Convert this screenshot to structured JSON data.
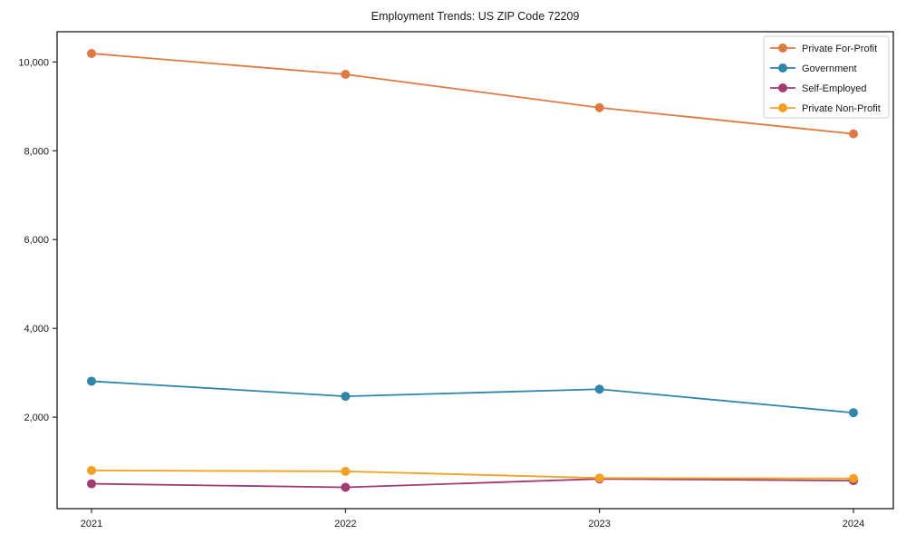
{
  "chart_data": {
    "type": "line",
    "title": "Employment Trends: US ZIP Code 72209",
    "xlabel": "",
    "ylabel": "",
    "grid": false,
    "legend_position": "upper right",
    "marker": "circle",
    "categories": [
      "2021",
      "2022",
      "2023",
      "2024"
    ],
    "ylim": [
      -60,
      10680
    ],
    "yticks": [
      {
        "value": 2000,
        "label": "2,000"
      },
      {
        "value": 4000,
        "label": "4,000"
      },
      {
        "value": 6000,
        "label": "6,000"
      },
      {
        "value": 8000,
        "label": "8,000"
      },
      {
        "value": 10000,
        "label": "10,000"
      }
    ],
    "series": [
      {
        "name": "Private For-Profit",
        "color": "#E1793E",
        "values": [
          10190,
          9720,
          8970,
          8380
        ]
      },
      {
        "name": "Government",
        "color": "#2E86AB",
        "values": [
          2810,
          2470,
          2630,
          2100
        ]
      },
      {
        "name": "Self-Employed",
        "color": "#A23B72",
        "values": [
          500,
          420,
          610,
          570
        ]
      },
      {
        "name": "Private Non-Profit",
        "color": "#F5A01E",
        "values": [
          800,
          780,
          630,
          620
        ]
      }
    ],
    "colors": {
      "axis": "#1a1a1a",
      "tick_label": "#1a1a1a",
      "legend_border": "#cccccc",
      "background": "#ffffff"
    }
  }
}
